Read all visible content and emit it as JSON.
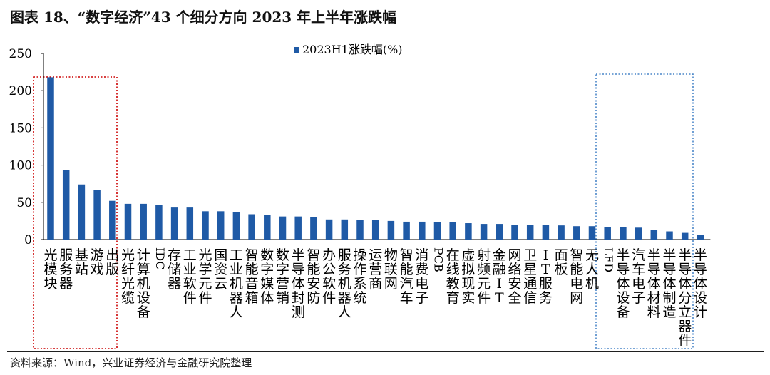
{
  "title": "图表 18、“数字经济”43 个细分方向 2023 年上半年涨跌幅",
  "source": "资料来源：Wind，兴业证券经济与金融研究院整理",
  "chart_data": {
    "type": "bar",
    "legend_position": "top-center",
    "ylim": [
      0,
      250
    ],
    "yticks": [
      0,
      50,
      100,
      150,
      200,
      250
    ],
    "grid": false,
    "bar_color": "#1f5aa6",
    "highlight_box_colors": [
      "#cc0000",
      "#4a86c8"
    ],
    "series": [
      {
        "name": "2023H1涨跌幅(%)",
        "values": [
          218,
          93,
          74,
          67,
          52,
          48,
          48,
          46,
          43,
          43,
          38,
          38,
          37,
          34,
          33,
          31,
          31,
          30,
          27,
          27,
          26,
          26,
          25,
          24,
          24,
          23,
          23,
          22,
          21,
          21,
          20,
          20,
          20,
          19,
          18,
          18,
          17,
          17,
          16,
          13,
          11,
          9,
          6
        ]
      }
    ],
    "categories": [
      "光模块",
      "服务器",
      "基站",
      "游戏",
      "出版",
      "光纤光缆",
      "计算机设备",
      "IDC",
      "存储器",
      "工业软件",
      "光学元件",
      "国资云",
      "工业机器人",
      "智能音箱",
      "数字媒体",
      "数字营销",
      "半导体封测",
      "智能安防",
      "办公软件",
      "服务机器人",
      "操作系统",
      "运营商",
      "物联网",
      "智能汽车",
      "消费电子",
      "PCB",
      "在线教育",
      "虚拟现实",
      "射频元件",
      "金融IT",
      "网络安全",
      "卫星通信",
      "IT服务",
      "面板",
      "智能电网",
      "无人机",
      "LED",
      "半导体设备",
      "汽车电子",
      "半导体材料",
      "半导体制造",
      "半导体分立器件",
      "半导体设计"
    ]
  }
}
